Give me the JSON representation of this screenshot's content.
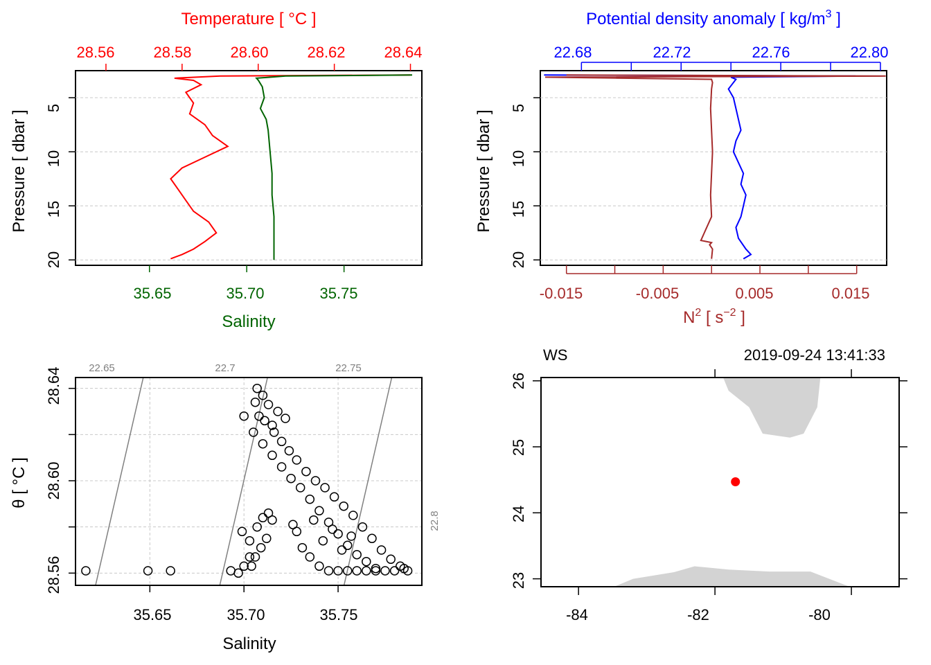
{
  "colors": {
    "temperature": "#ff0000",
    "salinity": "#006400",
    "density": "#0000ff",
    "n2": "#a52a2a",
    "iso": "#808080",
    "coast": "#d3d3d3",
    "station": "#ff0000"
  },
  "chart_data": [
    {
      "type": "line",
      "panel": "temperature-salinity-profile",
      "top_title": "Temperature [ °C ]",
      "top_ticks": [
        "28.56",
        "28.58",
        "28.60",
        "28.62",
        "28.64"
      ],
      "top_range": [
        28.552,
        28.643
      ],
      "bottom_title": "Salinity",
      "bottom_ticks": [
        "35.65",
        "35.70",
        "35.75"
      ],
      "bottom_range": [
        35.612,
        35.79
      ],
      "ylabel": "Pressure [ dbar ]",
      "yticks": [
        "5",
        "10",
        "15",
        "20"
      ],
      "ylim": [
        2.5,
        20.5
      ],
      "series": [
        {
          "name": "Temperature",
          "pressure": [
            2.9,
            3.0,
            3.2,
            3.4,
            3.8,
            4.5,
            5.5,
            6.5,
            7.5,
            8.5,
            9.5,
            10.5,
            11.5,
            12.5,
            13.5,
            14.5,
            15.5,
            16.5,
            17.5,
            18.3,
            19.0,
            19.5,
            19.9
          ],
          "value": [
            28.64,
            28.59,
            28.578,
            28.583,
            28.585,
            28.581,
            28.583,
            28.582,
            28.586,
            28.588,
            28.592,
            28.586,
            28.58,
            28.577,
            28.579,
            28.581,
            28.583,
            28.587,
            28.589,
            28.586,
            28.583,
            28.58,
            28.577
          ]
        },
        {
          "name": "Salinity",
          "pressure": [
            2.9,
            3.0,
            3.2,
            3.4,
            4.0,
            5.0,
            6.0,
            7.0,
            8.0,
            10.0,
            12.0,
            14.0,
            16.0,
            18.0,
            20.0
          ],
          "value": [
            35.785,
            35.72,
            35.705,
            35.706,
            35.708,
            35.709,
            35.707,
            35.71,
            35.711,
            35.712,
            35.713,
            35.713,
            35.714,
            35.714,
            35.714
          ]
        }
      ]
    },
    {
      "type": "line",
      "panel": "density-n2-profile",
      "top_title": "Potential density anomaly [ kg/m",
      "top_title_sup": "3",
      "top_title_end": " ]",
      "top_ticks": [
        "22.68",
        "22.72",
        "22.76",
        "22.80"
      ],
      "top_range": [
        22.6635,
        22.8025
      ],
      "bottom_title_base": "N",
      "bottom_title_sup": "2",
      "bottom_title_mid": " [ s",
      "bottom_title_sup2": "−2",
      "bottom_title_end": " ]",
      "bottom_ticks": [
        "-0.015",
        "-0.005",
        "0.005",
        "0.015"
      ],
      "bottom_range": [
        -0.0177,
        0.0181
      ],
      "ylabel": "Pressure [ dbar ]",
      "yticks": [
        "5",
        "10",
        "15",
        "20"
      ],
      "ylim": [
        2.5,
        20.5
      ],
      "series": [
        {
          "name": "Potential density anomaly",
          "pressure": [
            2.9,
            3.0,
            3.1,
            3.3,
            3.6,
            4.2,
            5.0,
            6.0,
            7.0,
            8.0,
            9.0,
            10.0,
            11.0,
            12.0,
            13.0,
            14.0,
            15.0,
            16.0,
            17.0,
            18.0,
            19.0,
            19.5,
            19.9
          ],
          "value": [
            22.665,
            22.79,
            22.74,
            22.742,
            22.741,
            22.739,
            22.741,
            22.742,
            22.743,
            22.744,
            22.742,
            22.741,
            22.743,
            22.745,
            22.744,
            22.746,
            22.745,
            22.744,
            22.742,
            22.743,
            22.746,
            22.748,
            22.745
          ]
        },
        {
          "name": "N2",
          "pressure": [
            2.9,
            3.0,
            3.1,
            3.3,
            3.6,
            4.2,
            6.0,
            8.0,
            10.0,
            12.0,
            14.0,
            16.0,
            18.2,
            18.4,
            18.6,
            19.0,
            19.9
          ],
          "value": [
            -0.015,
            0.018,
            -0.0172,
            0.0,
            0.0001,
            0.0,
            -0.0001,
            0.0,
            0.0001,
            0.0,
            -0.0001,
            0.0,
            -0.0011,
            0.0,
            -0.0002,
            0.0001,
            0.0
          ]
        }
      ]
    },
    {
      "type": "scatter",
      "panel": "ts-diagram",
      "xlabel": "Salinity",
      "ylabel": "θ [ °C ]",
      "xticks": [
        "35.65",
        "35.70",
        "35.75"
      ],
      "xlim": [
        35.6105,
        35.7945
      ],
      "yticks": [
        "28.56",
        "28.60",
        "28.64"
      ],
      "ylim": [
        28.5547,
        28.6447
      ],
      "isopycnal_labels": [
        "22.65",
        "22.7",
        "22.75",
        "22.8"
      ],
      "points": [
        [
          35.616,
          28.561
        ],
        [
          35.649,
          28.561
        ],
        [
          35.661,
          28.561
        ],
        [
          35.693,
          28.561
        ],
        [
          35.697,
          28.56
        ],
        [
          35.7,
          28.563
        ],
        [
          35.703,
          28.567
        ],
        [
          35.699,
          28.578
        ],
        [
          35.703,
          28.574
        ],
        [
          35.707,
          28.58
        ],
        [
          35.71,
          28.584
        ],
        [
          35.713,
          28.586
        ],
        [
          35.715,
          28.583
        ],
        [
          35.712,
          28.575
        ],
        [
          35.709,
          28.571
        ],
        [
          35.706,
          28.567
        ],
        [
          35.704,
          28.563
        ],
        [
          35.707,
          28.64
        ],
        [
          35.706,
          28.634
        ],
        [
          35.708,
          28.628
        ],
        [
          35.711,
          28.626
        ],
        [
          35.715,
          28.624
        ],
        [
          35.7,
          28.628
        ],
        [
          35.705,
          28.621
        ],
        [
          35.71,
          28.616
        ],
        [
          35.715,
          28.611
        ],
        [
          35.72,
          28.606
        ],
        [
          35.725,
          28.601
        ],
        [
          35.73,
          28.597
        ],
        [
          35.735,
          28.592
        ],
        [
          35.74,
          28.587
        ],
        [
          35.745,
          28.582
        ],
        [
          35.75,
          28.577
        ],
        [
          35.755,
          28.572
        ],
        [
          35.76,
          28.568
        ],
        [
          35.765,
          28.565
        ],
        [
          35.77,
          28.562
        ],
        [
          35.716,
          28.621
        ],
        [
          35.72,
          28.617
        ],
        [
          35.724,
          28.613
        ],
        [
          35.728,
          28.609
        ],
        [
          35.733,
          28.604
        ],
        [
          35.738,
          28.6
        ],
        [
          35.743,
          28.597
        ],
        [
          35.748,
          28.593
        ],
        [
          35.753,
          28.589
        ],
        [
          35.758,
          28.585
        ],
        [
          35.763,
          28.58
        ],
        [
          35.768,
          28.575
        ],
        [
          35.773,
          28.57
        ],
        [
          35.778,
          28.566
        ],
        [
          35.783,
          28.563
        ],
        [
          35.787,
          28.561
        ],
        [
          35.785,
          28.562
        ],
        [
          35.78,
          28.561
        ],
        [
          35.775,
          28.561
        ],
        [
          35.77,
          28.561
        ],
        [
          35.765,
          28.561
        ],
        [
          35.76,
          28.561
        ],
        [
          35.755,
          28.561
        ],
        [
          35.75,
          28.561
        ],
        [
          35.745,
          28.561
        ],
        [
          35.74,
          28.563
        ],
        [
          35.735,
          28.567
        ],
        [
          35.731,
          28.571
        ],
        [
          35.728,
          28.578
        ],
        [
          35.726,
          28.581
        ],
        [
          35.742,
          28.574
        ],
        [
          35.752,
          28.57
        ],
        [
          35.747,
          28.579
        ],
        [
          35.757,
          28.576
        ],
        [
          35.737,
          28.583
        ],
        [
          35.722,
          28.627
        ],
        [
          35.718,
          28.63
        ],
        [
          35.713,
          28.633
        ],
        [
          35.71,
          28.637
        ]
      ]
    },
    {
      "type": "scatter",
      "panel": "station-map",
      "top_left_label": "WS",
      "top_right_label": "2019-09-24 13:41:33",
      "xticks": [
        "-84",
        "-82",
        "-80"
      ],
      "xlim": [
        -84.55,
        -79.3
      ],
      "yticks": [
        "23",
        "24",
        "25",
        "26"
      ],
      "ylim": [
        22.88,
        26.05
      ],
      "station": [
        -81.7,
        24.47
      ],
      "coast_north": [
        [
          -81.9,
          26.1
        ],
        [
          -81.8,
          25.85
        ],
        [
          -81.5,
          25.6
        ],
        [
          -81.3,
          25.2
        ],
        [
          -80.9,
          25.14
        ],
        [
          -80.7,
          25.2
        ],
        [
          -80.5,
          25.6
        ],
        [
          -80.45,
          26.1
        ]
      ],
      "coast_south": [
        [
          -83.55,
          22.85
        ],
        [
          -83.2,
          23.0
        ],
        [
          -82.6,
          23.1
        ],
        [
          -82.3,
          23.19
        ],
        [
          -81.8,
          23.14
        ],
        [
          -81.2,
          23.11
        ],
        [
          -80.6,
          23.11
        ],
        [
          -79.95,
          22.85
        ]
      ]
    }
  ]
}
